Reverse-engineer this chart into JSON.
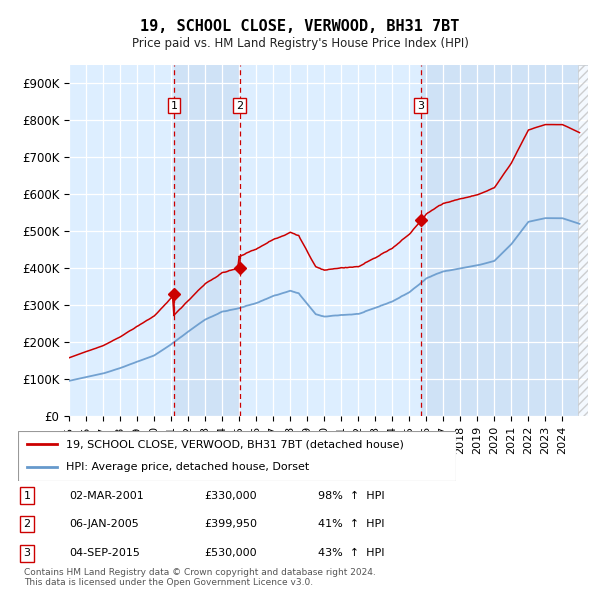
{
  "title": "19, SCHOOL CLOSE, VERWOOD, BH31 7BT",
  "subtitle": "Price paid vs. HM Land Registry's House Price Index (HPI)",
  "legend_line1": "19, SCHOOL CLOSE, VERWOOD, BH31 7BT (detached house)",
  "legend_line2": "HPI: Average price, detached house, Dorset",
  "footnote1": "Contains HM Land Registry data © Crown copyright and database right 2024.",
  "footnote2": "This data is licensed under the Open Government Licence v3.0.",
  "sale_color": "#cc0000",
  "hpi_color": "#6699cc",
  "bg_color": "#ddeeff",
  "sale_points": [
    {
      "num": 1,
      "date_str": "02-MAR-2001",
      "price": 330000,
      "pct": "98%",
      "x_year": 2001.17
    },
    {
      "num": 2,
      "date_str": "06-JAN-2005",
      "price": 399950,
      "pct": "41%",
      "x_year": 2005.02
    },
    {
      "num": 3,
      "date_str": "04-SEP-2015",
      "price": 530000,
      "pct": "43%",
      "x_year": 2015.67
    }
  ],
  "ylim": [
    0,
    950000
  ],
  "xlim_start": 1995.0,
  "xlim_end": 2025.5,
  "yticks": [
    0,
    100000,
    200000,
    300000,
    400000,
    500000,
    600000,
    700000,
    800000,
    900000
  ],
  "ytick_labels": [
    "£0",
    "£100K",
    "£200K",
    "£300K",
    "£400K",
    "£500K",
    "£600K",
    "£700K",
    "£800K",
    "£900K"
  ]
}
